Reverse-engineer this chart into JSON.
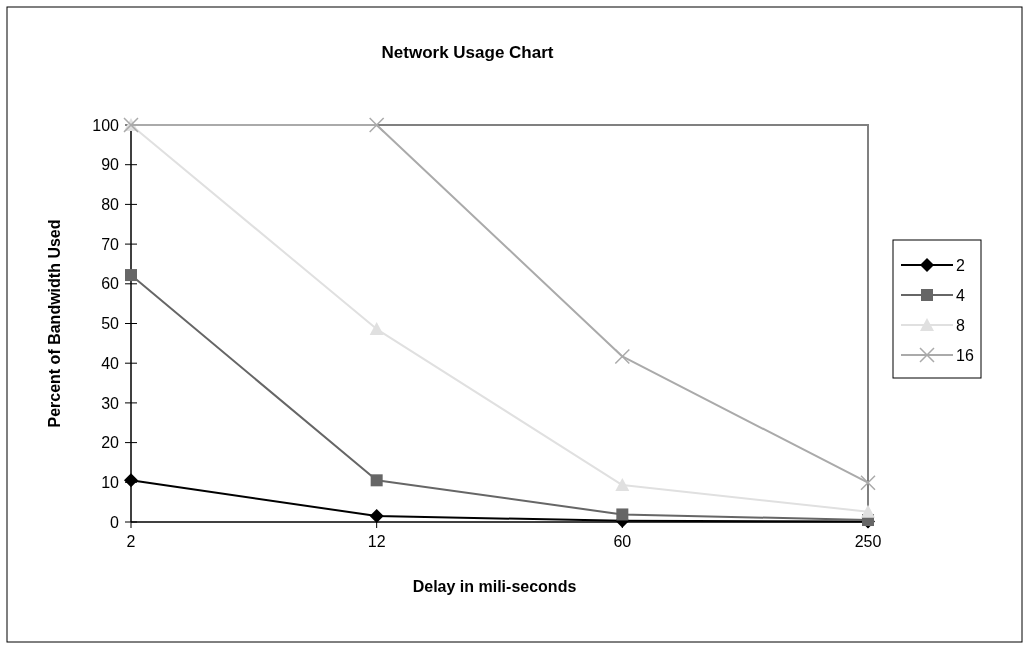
{
  "chart_data": {
    "type": "line",
    "title": "Network Usage Chart",
    "xlabel": "Delay in mili-seconds",
    "ylabel": "Percent of Bandwidth Used",
    "categories": [
      "2",
      "12",
      "60",
      "250"
    ],
    "ylim": [
      0,
      100
    ],
    "yticks": [
      0,
      10,
      20,
      30,
      40,
      50,
      60,
      70,
      80,
      90,
      100
    ],
    "grid": false,
    "legend": "right",
    "line_style": "solid",
    "series": [
      {
        "name": "2",
        "color": "#000000",
        "marker": "diamond",
        "values": [
          10.5,
          1.5,
          0.3,
          0.1
        ]
      },
      {
        "name": "4",
        "color": "#666666",
        "marker": "square",
        "values": [
          62.2,
          10.5,
          1.9,
          0.5
        ]
      },
      {
        "name": "8",
        "color": "#e0e0e0",
        "marker": "triangle",
        "values": [
          100,
          48.6,
          9.3,
          2.6
        ]
      },
      {
        "name": "16",
        "color": "#aaaaaa",
        "marker": "cross",
        "values": [
          100,
          100,
          41.7,
          9.9
        ]
      }
    ]
  }
}
